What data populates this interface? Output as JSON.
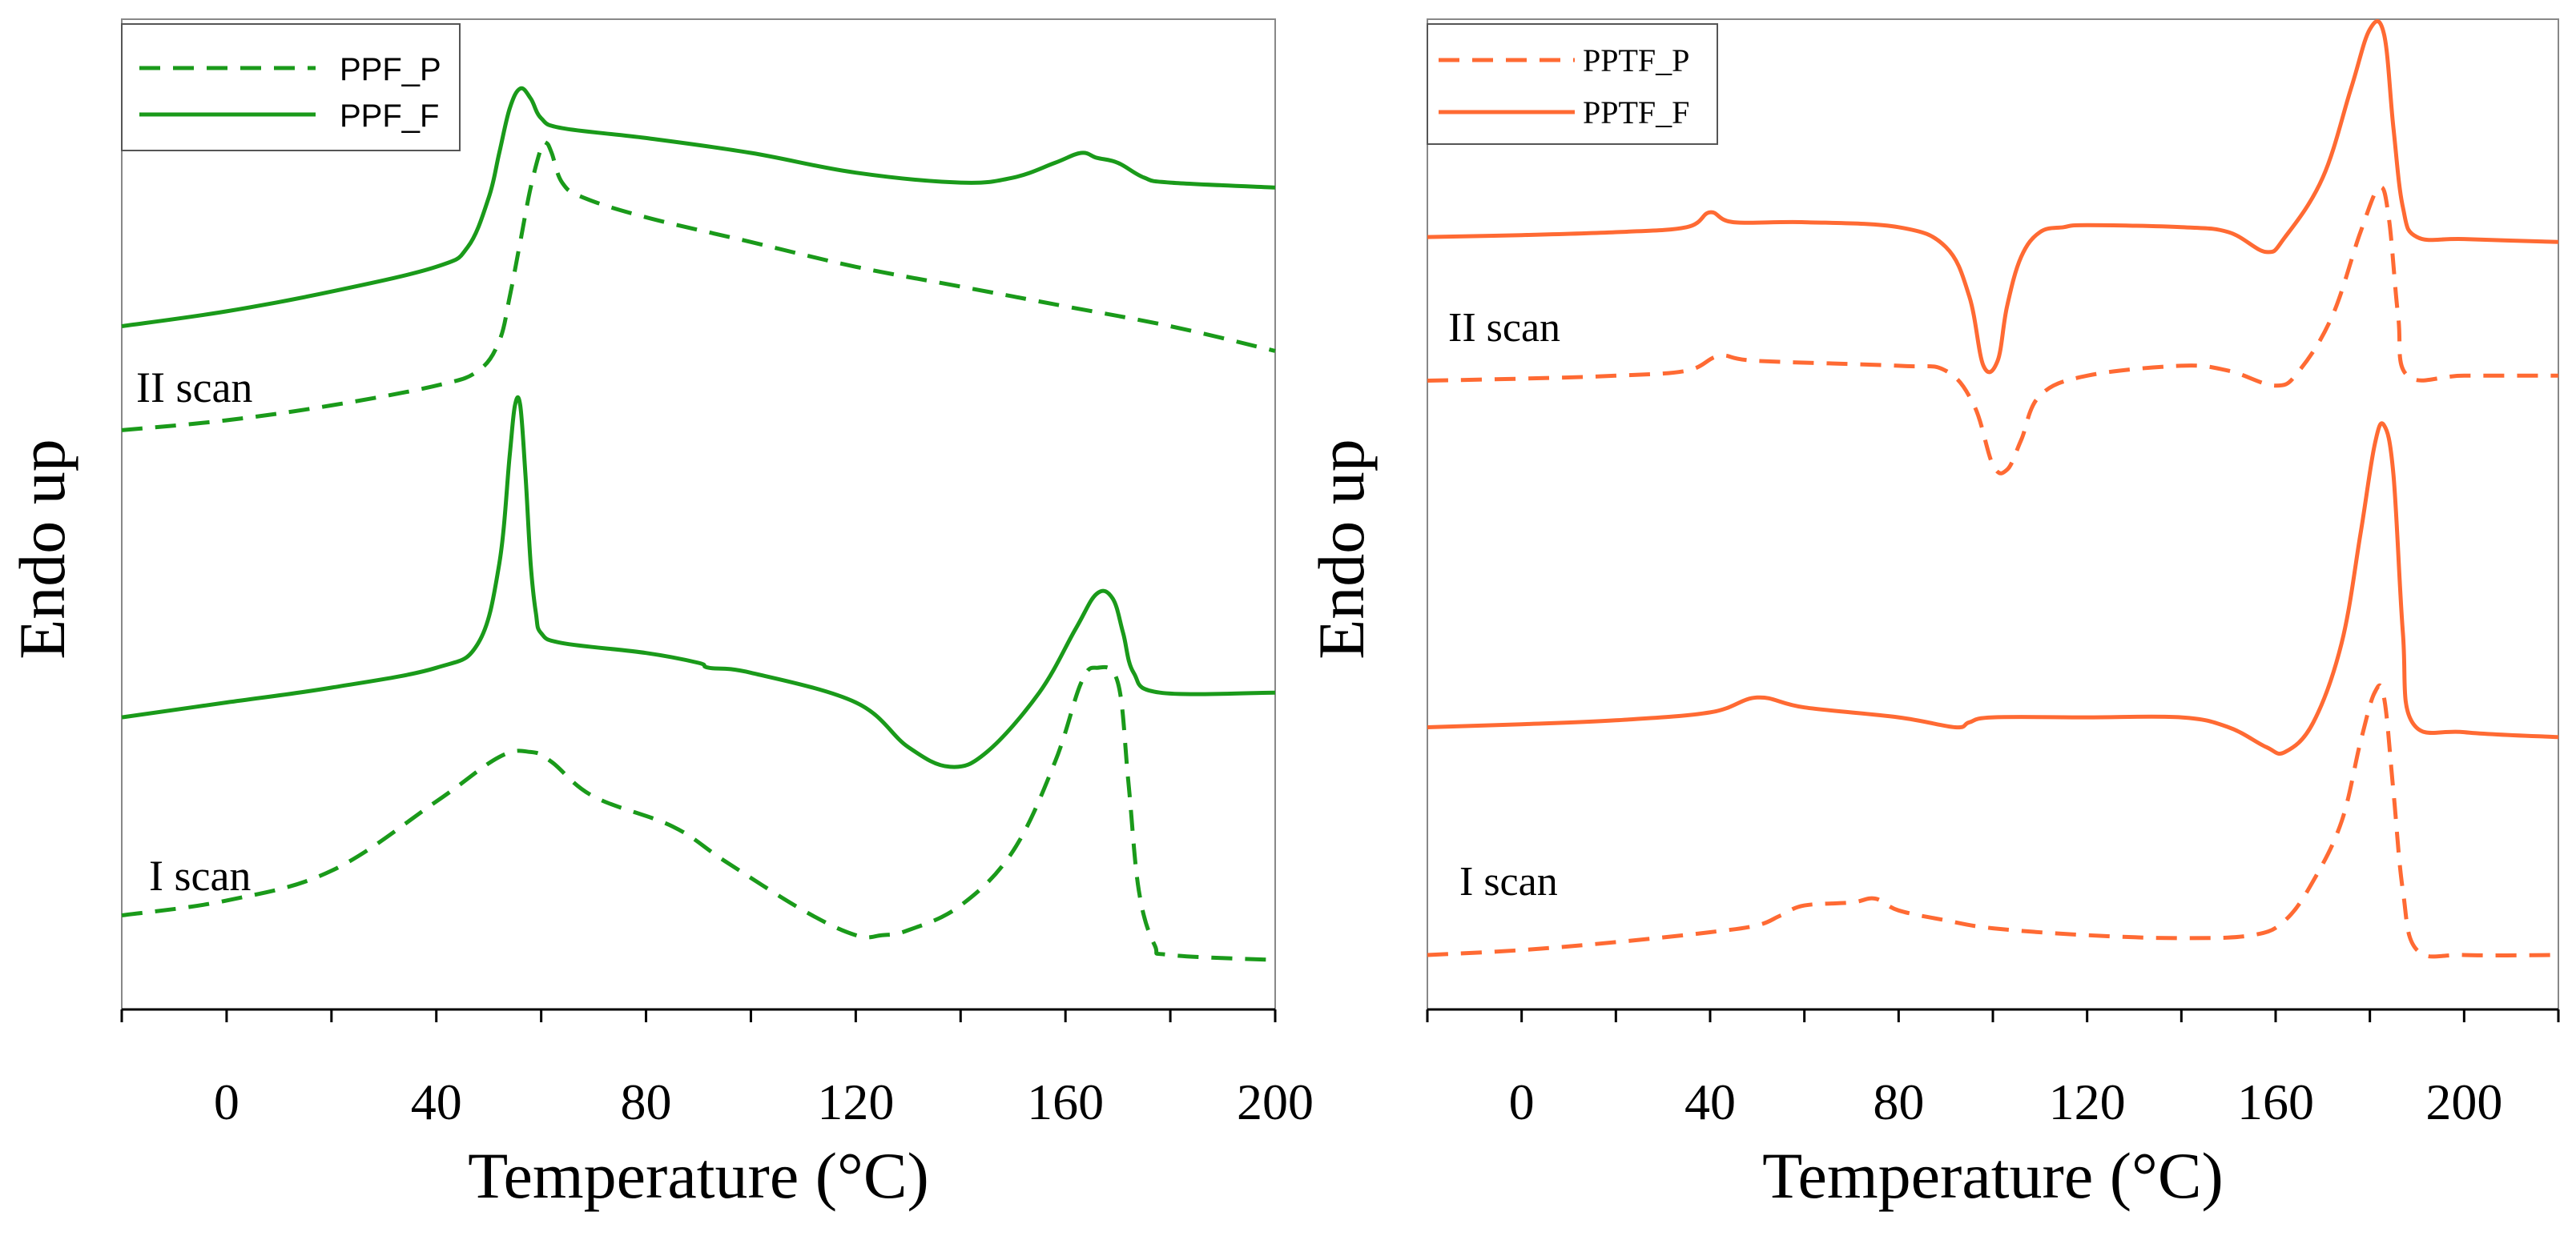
{
  "chart_data": [
    {
      "type": "line",
      "xlabel": "Temperature (°C)",
      "ylabel": "Endo up",
      "xlim": [
        -20,
        200
      ],
      "xticks": [
        "0",
        "40",
        "80",
        "120",
        "160",
        "200"
      ],
      "grid": false,
      "legend": {
        "position": "top-left",
        "entries": [
          "PPF_P",
          "PPF_F"
        ]
      },
      "annotations": [
        {
          "text": "II scan",
          "x": -20,
          "y": 5.95
        },
        {
          "text": "I scan",
          "x": -20,
          "y": 1.05
        }
      ],
      "ylim": [
        0,
        10
      ],
      "series": [
        {
          "name": "PPF_P",
          "scan": "II scan",
          "style": "dashed",
          "color": "#1a9a1a",
          "x": [
            -20,
            0,
            20,
            40,
            48,
            52,
            54,
            56,
            58,
            60,
            61,
            62,
            64,
            68,
            80,
            100,
            120,
            140,
            160,
            180,
            200
          ],
          "y": [
            5.85,
            5.95,
            6.1,
            6.3,
            6.45,
            6.75,
            7.2,
            7.75,
            8.3,
            8.7,
            8.75,
            8.65,
            8.35,
            8.2,
            8.0,
            7.75,
            7.5,
            7.3,
            7.1,
            6.9,
            6.65
          ]
        },
        {
          "name": "PPF_F",
          "scan": "II scan",
          "style": "solid",
          "color": "#1a9a1a",
          "x": [
            -20,
            0,
            20,
            40,
            46,
            50,
            52,
            54,
            56,
            58,
            60,
            64,
            80,
            100,
            120,
            140,
            150,
            158,
            163,
            166,
            170,
            175,
            180,
            200
          ],
          "y": [
            6.9,
            7.05,
            7.25,
            7.5,
            7.7,
            8.2,
            8.65,
            9.1,
            9.3,
            9.2,
            9.0,
            8.9,
            8.8,
            8.65,
            8.45,
            8.35,
            8.4,
            8.55,
            8.65,
            8.6,
            8.55,
            8.4,
            8.35,
            8.3
          ]
        },
        {
          "name": "PPF_F",
          "scan": "I scan",
          "style": "solid",
          "color": "#1a9a1a",
          "x": [
            -20,
            0,
            20,
            40,
            48,
            52,
            54,
            55,
            56,
            57,
            58,
            59,
            60,
            64,
            80,
            90,
            92,
            100,
            120,
            130,
            138,
            145,
            155,
            162,
            166,
            169,
            171,
            173,
            178,
            200
          ],
          "y": [
            2.95,
            3.1,
            3.25,
            3.45,
            3.7,
            4.5,
            5.6,
            6.1,
            6.1,
            5.4,
            4.5,
            4.0,
            3.8,
            3.7,
            3.6,
            3.5,
            3.45,
            3.4,
            3.1,
            2.65,
            2.45,
            2.6,
            3.2,
            3.85,
            4.2,
            4.15,
            3.8,
            3.4,
            3.2,
            3.2
          ]
        },
        {
          "name": "PPF_P",
          "scan": "I scan",
          "style": "dashed",
          "color": "#1a9a1a",
          "x": [
            -20,
            0,
            20,
            40,
            52,
            58,
            62,
            70,
            85,
            95,
            110,
            120,
            125,
            130,
            140,
            150,
            158,
            163,
            166,
            170,
            172,
            174,
            177,
            180,
            200
          ],
          "y": [
            0.95,
            1.1,
            1.4,
            2.1,
            2.55,
            2.6,
            2.5,
            2.15,
            1.85,
            1.5,
            1.0,
            0.75,
            0.75,
            0.8,
            1.05,
            1.6,
            2.5,
            3.3,
            3.45,
            3.3,
            2.3,
            1.2,
            0.65,
            0.55,
            0.5
          ]
        }
      ]
    },
    {
      "type": "line",
      "xlabel": "Temperature (°C)",
      "ylabel": "Endo up",
      "xlim": [
        -20,
        220
      ],
      "xticks": [
        "0",
        "40",
        "80",
        "120",
        "160",
        "200"
      ],
      "grid": false,
      "legend": {
        "position": "top-left",
        "entries": [
          "PPTF_P",
          "PPTF_F"
        ]
      },
      "annotations": [
        {
          "text": "II scan",
          "x": -20,
          "y": 7.05
        },
        {
          "text": "I scan",
          "x": -20,
          "y": 1.35
        }
      ],
      "ylim": [
        0,
        10
      ],
      "series": [
        {
          "name": "PPTF_F",
          "scan": "II scan",
          "style": "solid",
          "color": "#ff6a33",
          "x": [
            -20,
            0,
            20,
            35,
            40,
            45,
            60,
            80,
            90,
            95,
            98,
            101,
            103,
            106,
            110,
            115,
            120,
            140,
            150,
            158,
            162,
            170,
            176,
            180,
            183,
            185,
            187,
            190,
            200,
            220
          ],
          "y": [
            7.8,
            7.82,
            7.85,
            7.9,
            8.05,
            7.95,
            7.95,
            7.9,
            7.7,
            7.2,
            6.5,
            6.55,
            7.1,
            7.6,
            7.85,
            7.9,
            7.92,
            7.9,
            7.85,
            7.65,
            7.8,
            8.4,
            9.3,
            9.9,
            9.85,
            8.9,
            8.1,
            7.8,
            7.78,
            7.75
          ]
        },
        {
          "name": "PPTF_P",
          "scan": "II scan",
          "style": "dashed",
          "color": "#ff6a33",
          "x": [
            -20,
            0,
            20,
            35,
            42,
            50,
            80,
            90,
            96,
            100,
            103,
            106,
            110,
            120,
            140,
            150,
            160,
            165,
            172,
            178,
            182,
            184,
            186,
            188,
            200,
            220
          ],
          "y": [
            6.35,
            6.37,
            6.4,
            6.45,
            6.6,
            6.55,
            6.5,
            6.45,
            6.1,
            5.5,
            5.45,
            5.75,
            6.2,
            6.4,
            6.5,
            6.45,
            6.3,
            6.45,
            7.0,
            7.85,
            8.3,
            8.0,
            7.0,
            6.4,
            6.4,
            6.4
          ]
        },
        {
          "name": "PPTF_F",
          "scan": "I scan",
          "style": "solid",
          "color": "#ff6a33",
          "x": [
            -20,
            0,
            20,
            40,
            50,
            60,
            80,
            92,
            95,
            100,
            120,
            140,
            150,
            158,
            162,
            168,
            174,
            178,
            181,
            183,
            185,
            187,
            189,
            200,
            220
          ],
          "y": [
            2.85,
            2.88,
            2.92,
            3.0,
            3.15,
            3.05,
            2.95,
            2.85,
            2.9,
            2.95,
            2.95,
            2.95,
            2.85,
            2.65,
            2.6,
            2.9,
            3.7,
            4.8,
            5.7,
            5.9,
            5.4,
            3.8,
            2.9,
            2.8,
            2.75
          ]
        },
        {
          "name": "PPTF_P",
          "scan": "I scan",
          "style": "dashed",
          "color": "#ff6a33",
          "x": [
            -20,
            0,
            20,
            40,
            50,
            55,
            60,
            70,
            75,
            80,
            90,
            100,
            120,
            140,
            155,
            162,
            168,
            174,
            178,
            181,
            183,
            185,
            187,
            190,
            200,
            220
          ],
          "y": [
            0.55,
            0.6,
            0.68,
            0.78,
            0.85,
            0.95,
            1.05,
            1.08,
            1.12,
            1.0,
            0.9,
            0.82,
            0.75,
            0.72,
            0.75,
            0.9,
            1.3,
            1.9,
            2.7,
            3.2,
            3.15,
            2.2,
            1.2,
            0.6,
            0.55,
            0.55
          ]
        }
      ]
    }
  ]
}
